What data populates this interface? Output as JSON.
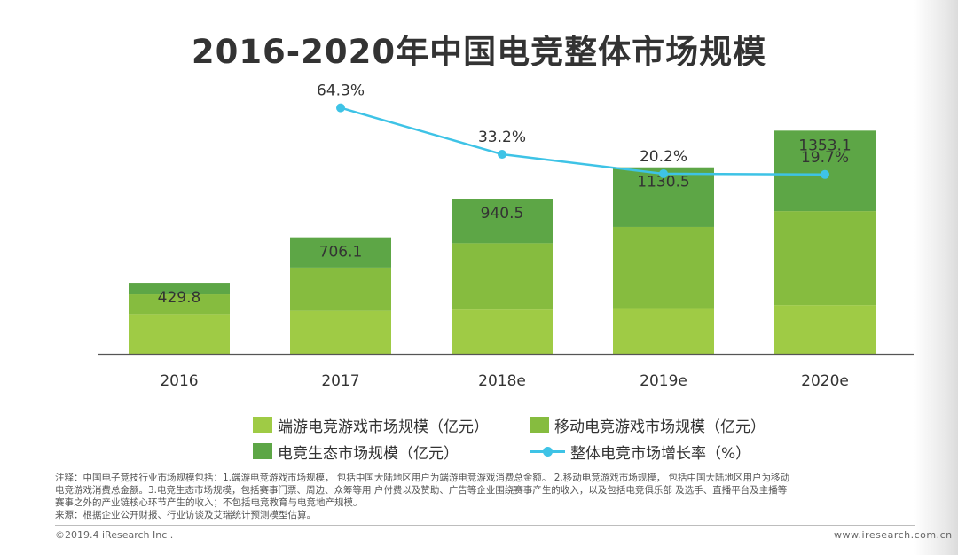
{
  "title": "2016-2020年中国电竞整体市场规模",
  "chart_data": {
    "type": "bar",
    "stacked": true,
    "title": "2016-2020年中国电竞整体市场规模",
    "categories": [
      "2016",
      "2017",
      "2018e",
      "2019e",
      "2020e"
    ],
    "series": [
      {
        "name": "端游电竞游戏市场规模（亿元）",
        "values": [
          240,
          260,
          268,
          277,
          295
        ],
        "color": "#9fcb45"
      },
      {
        "name": "移动电竞游戏市场规模（亿元）",
        "values": [
          120,
          262,
          402,
          492,
          570
        ],
        "color": "#86bc3f"
      },
      {
        "name": "电竞生态市场规模（亿元）",
        "values": [
          69.8,
          184.1,
          270.5,
          361.5,
          488.1
        ],
        "color": "#5da646"
      }
    ],
    "totals": [
      "429.8",
      "706.1",
      "940.5",
      "1130.5",
      "1353.1"
    ],
    "line_series": {
      "name": "整体电竞市场增长率（%）",
      "categories": [
        "2017",
        "2018e",
        "2019e",
        "2020e"
      ],
      "values": [
        64.3,
        33.2,
        20.2,
        19.7
      ],
      "labels": [
        "64.3%",
        "33.2%",
        "20.2%",
        "19.7%"
      ],
      "color": "#3ec3e6"
    },
    "ylim": [
      0,
      1500
    ],
    "xlabel": "",
    "ylabel": "",
    "grid": false,
    "legend_position": "bottom"
  },
  "notes": {
    "line1": "注释：中国电子竞技行业市场规模包括：1.端游电竞游戏市场规模， 包括中国大陆地区用户为端游电竞游戏消费总金额。 2.移动电竞游戏市场规模， 包括中国大陆地区用户为移动",
    "line2": "电竞游戏消费总金额。3.电竞生态市场规模，包括赛事门票、周边、众筹等用 户付费以及赞助、广告等企业围绕赛事产生的收入，以及包括电竞俱乐部 及选手、直播平台及主播等",
    "line3": "赛事之外的产业链核心环节产生的收入；不包括电竞教育与电竞地产规模。",
    "line4": "来源：根据企业公开财报、行业访谈及艾瑞统计预测模型估算。"
  },
  "footer": {
    "copyright": "©2019.4 iResearch Inc .",
    "website": "www.iresearch.com.cn"
  }
}
